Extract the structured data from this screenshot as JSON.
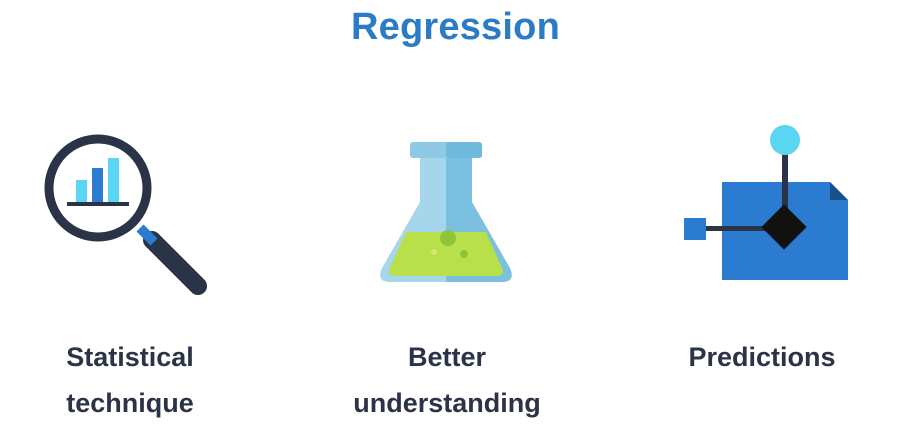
{
  "slide": {
    "title": "Regression"
  },
  "items": [
    {
      "icon": "magnifier-chart-icon",
      "label_line1": "Statistical",
      "label_line2": "technique"
    },
    {
      "icon": "flask-icon",
      "label_line1": "Better",
      "label_line2": "understanding"
    },
    {
      "icon": "decision-flow-icon",
      "label_line1": "Predictions"
    }
  ],
  "colors": {
    "title": "#2b7cc4",
    "label": "#2a3347",
    "dark_navy": "#2a3347",
    "blue": "#2b7cd0",
    "light_blue": "#5ad6f2",
    "flask_glass": "#8ecae6",
    "liquid": "#b7e04a"
  }
}
